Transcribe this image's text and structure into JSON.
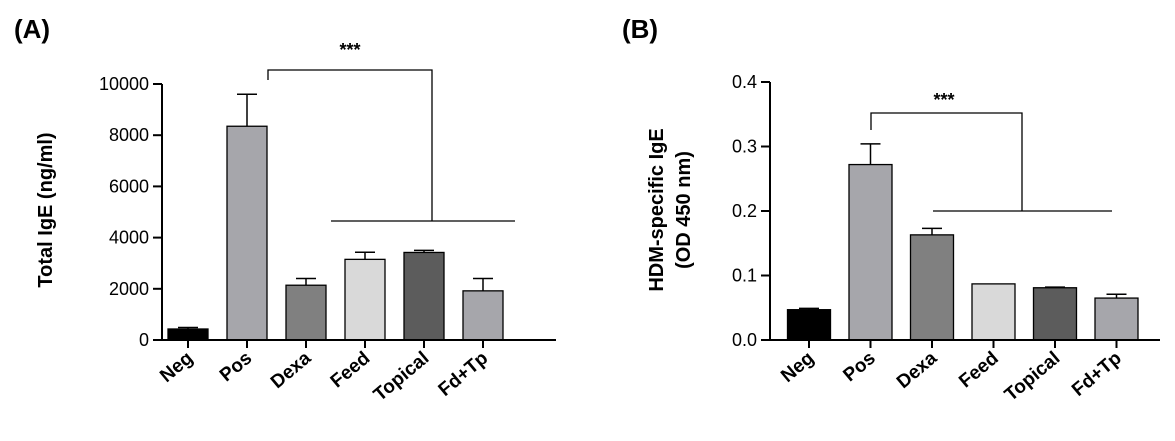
{
  "chart_data": [
    {
      "type": "bar",
      "panel": "(A)",
      "ylabel": "Total IgE (ng/ml)",
      "xlabel": "",
      "ylim": [
        0,
        10000
      ],
      "yticks": [
        "0",
        "2000",
        "4000",
        "6000",
        "8000",
        "10000"
      ],
      "categories": [
        "Neg",
        "Pos",
        "Dexa",
        "Feed",
        "Topical",
        "Fd+Tp"
      ],
      "values": [
        430,
        8350,
        2140,
        3150,
        3420,
        1920
      ],
      "errors": [
        60,
        1250,
        260,
        280,
        80,
        480
      ],
      "colors": [
        "#000000",
        "#a6a6ab",
        "#808080",
        "#d9d9d9",
        "#5c5c5c",
        "#a6a6ab"
      ],
      "significance": "***"
    },
    {
      "type": "bar",
      "panel": "(B)",
      "ylabel": "HDM-specific IgE (OD 450 nm)",
      "ylabel_lines": [
        "HDM-specific IgE",
        "(OD 450 nm)"
      ],
      "xlabel": "",
      "ylim": [
        0,
        0.4
      ],
      "yticks": [
        "0.0",
        "0.1",
        "0.2",
        "0.3",
        "0.4"
      ],
      "categories": [
        "Neg",
        "Pos",
        "Dexa",
        "Feed",
        "Topical",
        "Fd+Tp"
      ],
      "values": [
        0.047,
        0.272,
        0.163,
        0.087,
        0.081,
        0.065
      ],
      "errors": [
        0.002,
        0.032,
        0.01,
        0.0,
        0.001,
        0.006
      ],
      "colors": [
        "#000000",
        "#a6a6ab",
        "#808080",
        "#d9d9d9",
        "#5c5c5c",
        "#a6a6ab"
      ],
      "significance": "***"
    }
  ]
}
